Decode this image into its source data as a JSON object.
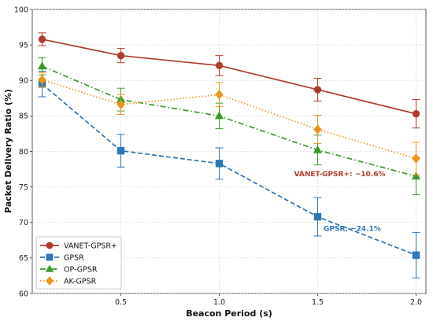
{
  "chart_data": {
    "type": "line",
    "xlabel": "Beacon Period (s)",
    "ylabel": "Packet Delivery Ratio (%)",
    "xlim": [
      0.05,
      2.05
    ],
    "ylim": [
      60,
      100
    ],
    "xticks": [
      "0.5",
      "1.0",
      "1.5",
      "2.0"
    ],
    "xtick_values": [
      0.5,
      1.0,
      1.5,
      2.0
    ],
    "yticks": [
      "60",
      "65",
      "70",
      "75",
      "80",
      "85",
      "90",
      "95",
      "100"
    ],
    "ytick_values": [
      60,
      65,
      70,
      75,
      80,
      85,
      90,
      95,
      100
    ],
    "grid": true,
    "legend_position": "bottom-left",
    "x": [
      0.1,
      0.5,
      1.0,
      1.5,
      2.0
    ],
    "series": [
      {
        "name": "VANET-GPSR+",
        "values": [
          95.8,
          93.5,
          92.1,
          88.7,
          85.3
        ],
        "errors": [
          0.9,
          1.0,
          1.4,
          1.6,
          2.0
        ],
        "color": "#b03a2e",
        "marker": "circle",
        "style": "solid"
      },
      {
        "name": "GPSR",
        "values": [
          89.5,
          80.1,
          78.3,
          70.8,
          65.4
        ],
        "errors": [
          1.8,
          2.3,
          2.2,
          2.7,
          3.2
        ],
        "color": "#2e75b6",
        "marker": "square",
        "style": "dashed"
      },
      {
        "name": "OP-GPSR",
        "values": [
          92.0,
          87.3,
          85.0,
          80.2,
          76.5
        ],
        "errors": [
          1.2,
          1.6,
          1.8,
          2.1,
          2.6
        ],
        "color": "#3a9a2a",
        "marker": "triangle",
        "style": "dashdot"
      },
      {
        "name": "AK-GPSR",
        "values": [
          90.1,
          86.6,
          88.0,
          83.1,
          79.0
        ],
        "errors": [
          1.0,
          1.4,
          1.7,
          2.0,
          2.3
        ],
        "color": "#e8961a",
        "marker": "diamond",
        "style": "dotted"
      }
    ],
    "annotations": [
      {
        "text": "VANET-GPSR+: −10.6%",
        "color": "#b03a2e",
        "x": 1.38,
        "y": 76.5
      },
      {
        "text": "GPSR: −24.1%",
        "color": "#2e75b6",
        "x": 1.53,
        "y": 68.8
      }
    ]
  }
}
